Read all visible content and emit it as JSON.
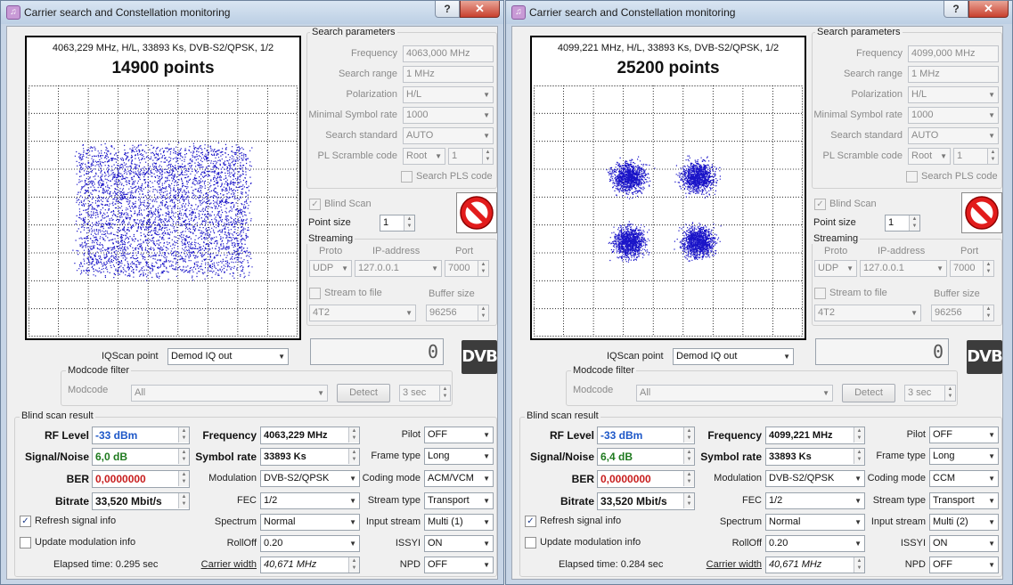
{
  "windows": [
    {
      "title": "Carrier search and Constellation monitoring",
      "help_label": "?",
      "close_label": "✕",
      "plot": {
        "info": "4063,229 MHz, H/L, 33893 Ks, DVB-S2/QPSK, 1/2",
        "points": "14900 points"
      },
      "search": {
        "title": "Search parameters",
        "frequency_label": "Frequency",
        "frequency": "4063,000 MHz",
        "search_range_label": "Search range",
        "search_range": "1 MHz",
        "polarization_label": "Polarization",
        "polarization": "H/L",
        "min_symbol_rate_label": "Minimal Symbol rate",
        "min_symbol_rate": "1000",
        "search_standard_label": "Search standard",
        "search_standard": "AUTO",
        "pl_scramble_label": "PL Scramble code",
        "pl_scramble_mode": "Root",
        "pl_scramble_value": "1",
        "search_pls_label": "Search PLS code"
      },
      "blind_scan_label": "Blind Scan",
      "point_size_label": "Point size",
      "point_size": "1",
      "streaming": {
        "title": "Streaming",
        "proto_label": "Proto",
        "ip_label": "IP-address",
        "port_label": "Port",
        "proto": "UDP",
        "ip": "127.0.0.1",
        "port": "7000",
        "stream_to_file_label": "Stream to file",
        "buffer_size_label": "Buffer size",
        "file": "4T2",
        "buffer_size": "96256"
      },
      "counter": "0",
      "dvb_logo": "DVB",
      "iqscan_label": "IQScan point",
      "iqscan": "Demod IQ out",
      "modcode_filter": {
        "title": "Modcode filter",
        "modcode_label": "Modcode",
        "modcode": "All",
        "detect_label": "Detect",
        "interval": "3 sec"
      },
      "result": {
        "title": "Blind scan result",
        "rf_level_label": "RF Level",
        "rf_level": "-33 dBm",
        "snr_label": "Signal/Noise",
        "snr": "6,0 dB",
        "ber_label": "BER",
        "ber": "0,0000000",
        "bitrate_label": "Bitrate",
        "bitrate": "33,520 Mbit/s",
        "frequency_label": "Frequency",
        "frequency": "4063,229 MHz",
        "symbol_rate_label": "Symbol rate",
        "symbol_rate": "33893 Ks",
        "modulation_label": "Modulation",
        "modulation": "DVB-S2/QPSK",
        "fec_label": "FEC",
        "fec": "1/2",
        "spectrum_label": "Spectrum",
        "spectrum": "Normal",
        "rolloff_label": "RollOff",
        "rolloff": "0.20",
        "carrier_width_label": "Carrier width",
        "carrier_width": "40,671 MHz",
        "pilot_label": "Pilot",
        "pilot": "OFF",
        "frame_type_label": "Frame type",
        "frame_type": "Long",
        "coding_mode_label": "Coding mode",
        "coding_mode": "ACM/VCM",
        "stream_type_label": "Stream type",
        "stream_type": "Transport",
        "input_stream_label": "Input stream",
        "input_stream": "Multi (1)",
        "issyi_label": "ISSYI",
        "issyi": "ON",
        "npd_label": "NPD",
        "npd": "OFF",
        "refresh_label": "Refresh signal info",
        "update_mod_label": "Update modulation info",
        "elapsed": "Elapsed time: 0.295 sec"
      }
    },
    {
      "title": "Carrier search and Constellation monitoring",
      "help_label": "?",
      "close_label": "✕",
      "plot": {
        "info": "4099,221 MHz, H/L, 33893 Ks, DVB-S2/QPSK, 1/2",
        "points": "25200 points"
      },
      "search": {
        "title": "Search parameters",
        "frequency_label": "Frequency",
        "frequency": "4099,000 MHz",
        "search_range_label": "Search range",
        "search_range": "1 MHz",
        "polarization_label": "Polarization",
        "polarization": "H/L",
        "min_symbol_rate_label": "Minimal Symbol rate",
        "min_symbol_rate": "1000",
        "search_standard_label": "Search standard",
        "search_standard": "AUTO",
        "pl_scramble_label": "PL Scramble code",
        "pl_scramble_mode": "Root",
        "pl_scramble_value": "1",
        "search_pls_label": "Search PLS code"
      },
      "blind_scan_label": "Blind Scan",
      "point_size_label": "Point size",
      "point_size": "1",
      "streaming": {
        "title": "Streaming",
        "proto_label": "Proto",
        "ip_label": "IP-address",
        "port_label": "Port",
        "proto": "UDP",
        "ip": "127.0.0.1",
        "port": "7000",
        "stream_to_file_label": "Stream to file",
        "buffer_size_label": "Buffer size",
        "file": "4T2",
        "buffer_size": "96256"
      },
      "counter": "0",
      "dvb_logo": "DVB",
      "iqscan_label": "IQScan point",
      "iqscan": "Demod IQ out",
      "modcode_filter": {
        "title": "Modcode filter",
        "modcode_label": "Modcode",
        "modcode": "All",
        "detect_label": "Detect",
        "interval": "3 sec"
      },
      "result": {
        "title": "Blind scan result",
        "rf_level_label": "RF Level",
        "rf_level": "-33 dBm",
        "snr_label": "Signal/Noise",
        "snr": "6,4 dB",
        "ber_label": "BER",
        "ber": "0,0000000",
        "bitrate_label": "Bitrate",
        "bitrate": "33,520 Mbit/s",
        "frequency_label": "Frequency",
        "frequency": "4099,221 MHz",
        "symbol_rate_label": "Symbol rate",
        "symbol_rate": "33893 Ks",
        "modulation_label": "Modulation",
        "modulation": "DVB-S2/QPSK",
        "fec_label": "FEC",
        "fec": "1/2",
        "spectrum_label": "Spectrum",
        "spectrum": "Normal",
        "rolloff_label": "RollOff",
        "rolloff": "0.20",
        "carrier_width_label": "Carrier width",
        "carrier_width": "40,671 MHz",
        "pilot_label": "Pilot",
        "pilot": "OFF",
        "frame_type_label": "Frame type",
        "frame_type": "Long",
        "coding_mode_label": "Coding mode",
        "coding_mode": "CCM",
        "stream_type_label": "Stream type",
        "stream_type": "Transport",
        "input_stream_label": "Input stream",
        "input_stream": "Multi (2)",
        "issyi_label": "ISSYI",
        "issyi": "ON",
        "npd_label": "NPD",
        "npd": "OFF",
        "refresh_label": "Refresh signal info",
        "update_mod_label": "Update modulation info",
        "elapsed": "Elapsed time: 0.284 sec"
      }
    }
  ],
  "colors": {
    "point": "#1a14c8",
    "grid": "#000000",
    "titlebar": "#c9d8ea"
  }
}
